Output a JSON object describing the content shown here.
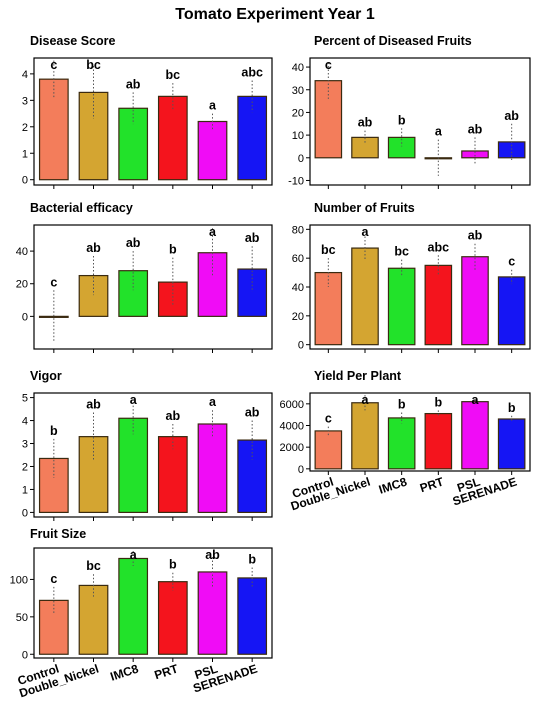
{
  "title": "Tomato Experiment Year 1",
  "colors": {
    "Control": "#f37d5b",
    "Double_Nickel": "#d4a531",
    "IMC8": "#22e22a",
    "PRT": "#f4141d",
    "PSL": "#f00cf6",
    "SERENADE": "#1515f4"
  },
  "chart_data": [
    {
      "type": "bar",
      "title": "Disease Score",
      "categories": [
        "Control",
        "Double_Nickel",
        "IMC8",
        "PRT",
        "PSL",
        "SERENADE"
      ],
      "values": [
        3.8,
        3.3,
        2.7,
        3.15,
        2.2,
        3.15
      ],
      "errors": [
        0.7,
        1.0,
        0.6,
        0.5,
        0.3,
        0.6
      ],
      "letters": [
        "c",
        "bc",
        "ab",
        "bc",
        "a",
        "abc"
      ],
      "ylim": [
        -0.2,
        4.6
      ],
      "yticks": [
        0,
        1,
        2,
        3,
        4
      ]
    },
    {
      "type": "bar",
      "title": "Percent of Diseased Fruits",
      "categories": [
        "Control",
        "Double_Nickel",
        "IMC8",
        "PRT",
        "PSL",
        "SERENADE"
      ],
      "values": [
        34,
        9,
        9,
        0,
        3,
        7
      ],
      "errors": [
        8,
        3,
        4,
        8,
        6,
        8
      ],
      "letters": [
        "c",
        "ab",
        "b",
        "a",
        "ab",
        "ab"
      ],
      "ylim": [
        -12,
        44
      ],
      "yticks": [
        -10,
        0,
        10,
        20,
        30,
        40
      ]
    },
    {
      "type": "bar",
      "title": "Bacterial efficacy",
      "categories": [
        "Control",
        "Double_Nickel",
        "IMC8",
        "PRT",
        "PSL",
        "SERENADE"
      ],
      "values": [
        0,
        25,
        28,
        21,
        39,
        29
      ],
      "errors": [
        16,
        12,
        12,
        15,
        15,
        14
      ],
      "letters": [
        "c",
        "ab",
        "ab",
        "b",
        "a",
        "ab"
      ],
      "ylim": [
        -20,
        56
      ],
      "yticks": [
        0,
        20,
        40
      ]
    },
    {
      "type": "bar",
      "title": "Number of Fruits",
      "categories": [
        "Control",
        "Double_Nickel",
        "IMC8",
        "PRT",
        "PSL",
        "SERENADE"
      ],
      "values": [
        50,
        67,
        53,
        55,
        61,
        47
      ],
      "errors": [
        10,
        8,
        6,
        7,
        9,
        5
      ],
      "letters": [
        "bc",
        "a",
        "bc",
        "abc",
        "ab",
        "c"
      ],
      "ylim": [
        -3,
        83
      ],
      "yticks": [
        0,
        20,
        40,
        60,
        80
      ]
    },
    {
      "type": "bar",
      "title": "Vigor",
      "categories": [
        "Control",
        "Double_Nickel",
        "IMC8",
        "PRT",
        "PSL",
        "SERENADE"
      ],
      "values": [
        2.35,
        3.3,
        4.1,
        3.3,
        3.85,
        3.15
      ],
      "errors": [
        0.85,
        1.05,
        0.7,
        0.55,
        0.6,
        0.85
      ],
      "letters": [
        "b",
        "ab",
        "a",
        "ab",
        "a",
        "ab"
      ],
      "ylim": [
        -0.2,
        5.2
      ],
      "yticks": [
        0,
        1,
        2,
        3,
        4,
        5
      ]
    },
    {
      "type": "bar",
      "title": "Yield Per Plant",
      "categories": [
        "Control",
        "Double_Nickel",
        "IMC8",
        "PRT",
        "PSL",
        "SERENADE"
      ],
      "values": [
        3500,
        6100,
        4700,
        5100,
        6200,
        4600
      ],
      "errors": [
        400,
        700,
        500,
        300,
        200,
        300
      ],
      "letters": [
        "c",
        "a",
        "b",
        "b",
        "a",
        "b"
      ],
      "ylim": [
        -200,
        7000
      ],
      "yticks": [
        0,
        2000,
        4000,
        6000
      ],
      "show_categories": true
    },
    {
      "type": "bar",
      "title": "Fruit Size",
      "categories": [
        "Control",
        "Double_Nickel",
        "IMC8",
        "PRT",
        "PSL",
        "SERENADE"
      ],
      "values": [
        72,
        92,
        128,
        97,
        110,
        102
      ],
      "errors": [
        18,
        15,
        10,
        12,
        20,
        14
      ],
      "letters": [
        "c",
        "bc",
        "a",
        "b",
        "ab",
        "b"
      ],
      "ylim": [
        -5,
        142
      ],
      "yticks": [
        0,
        50,
        100
      ],
      "show_categories": true
    }
  ]
}
